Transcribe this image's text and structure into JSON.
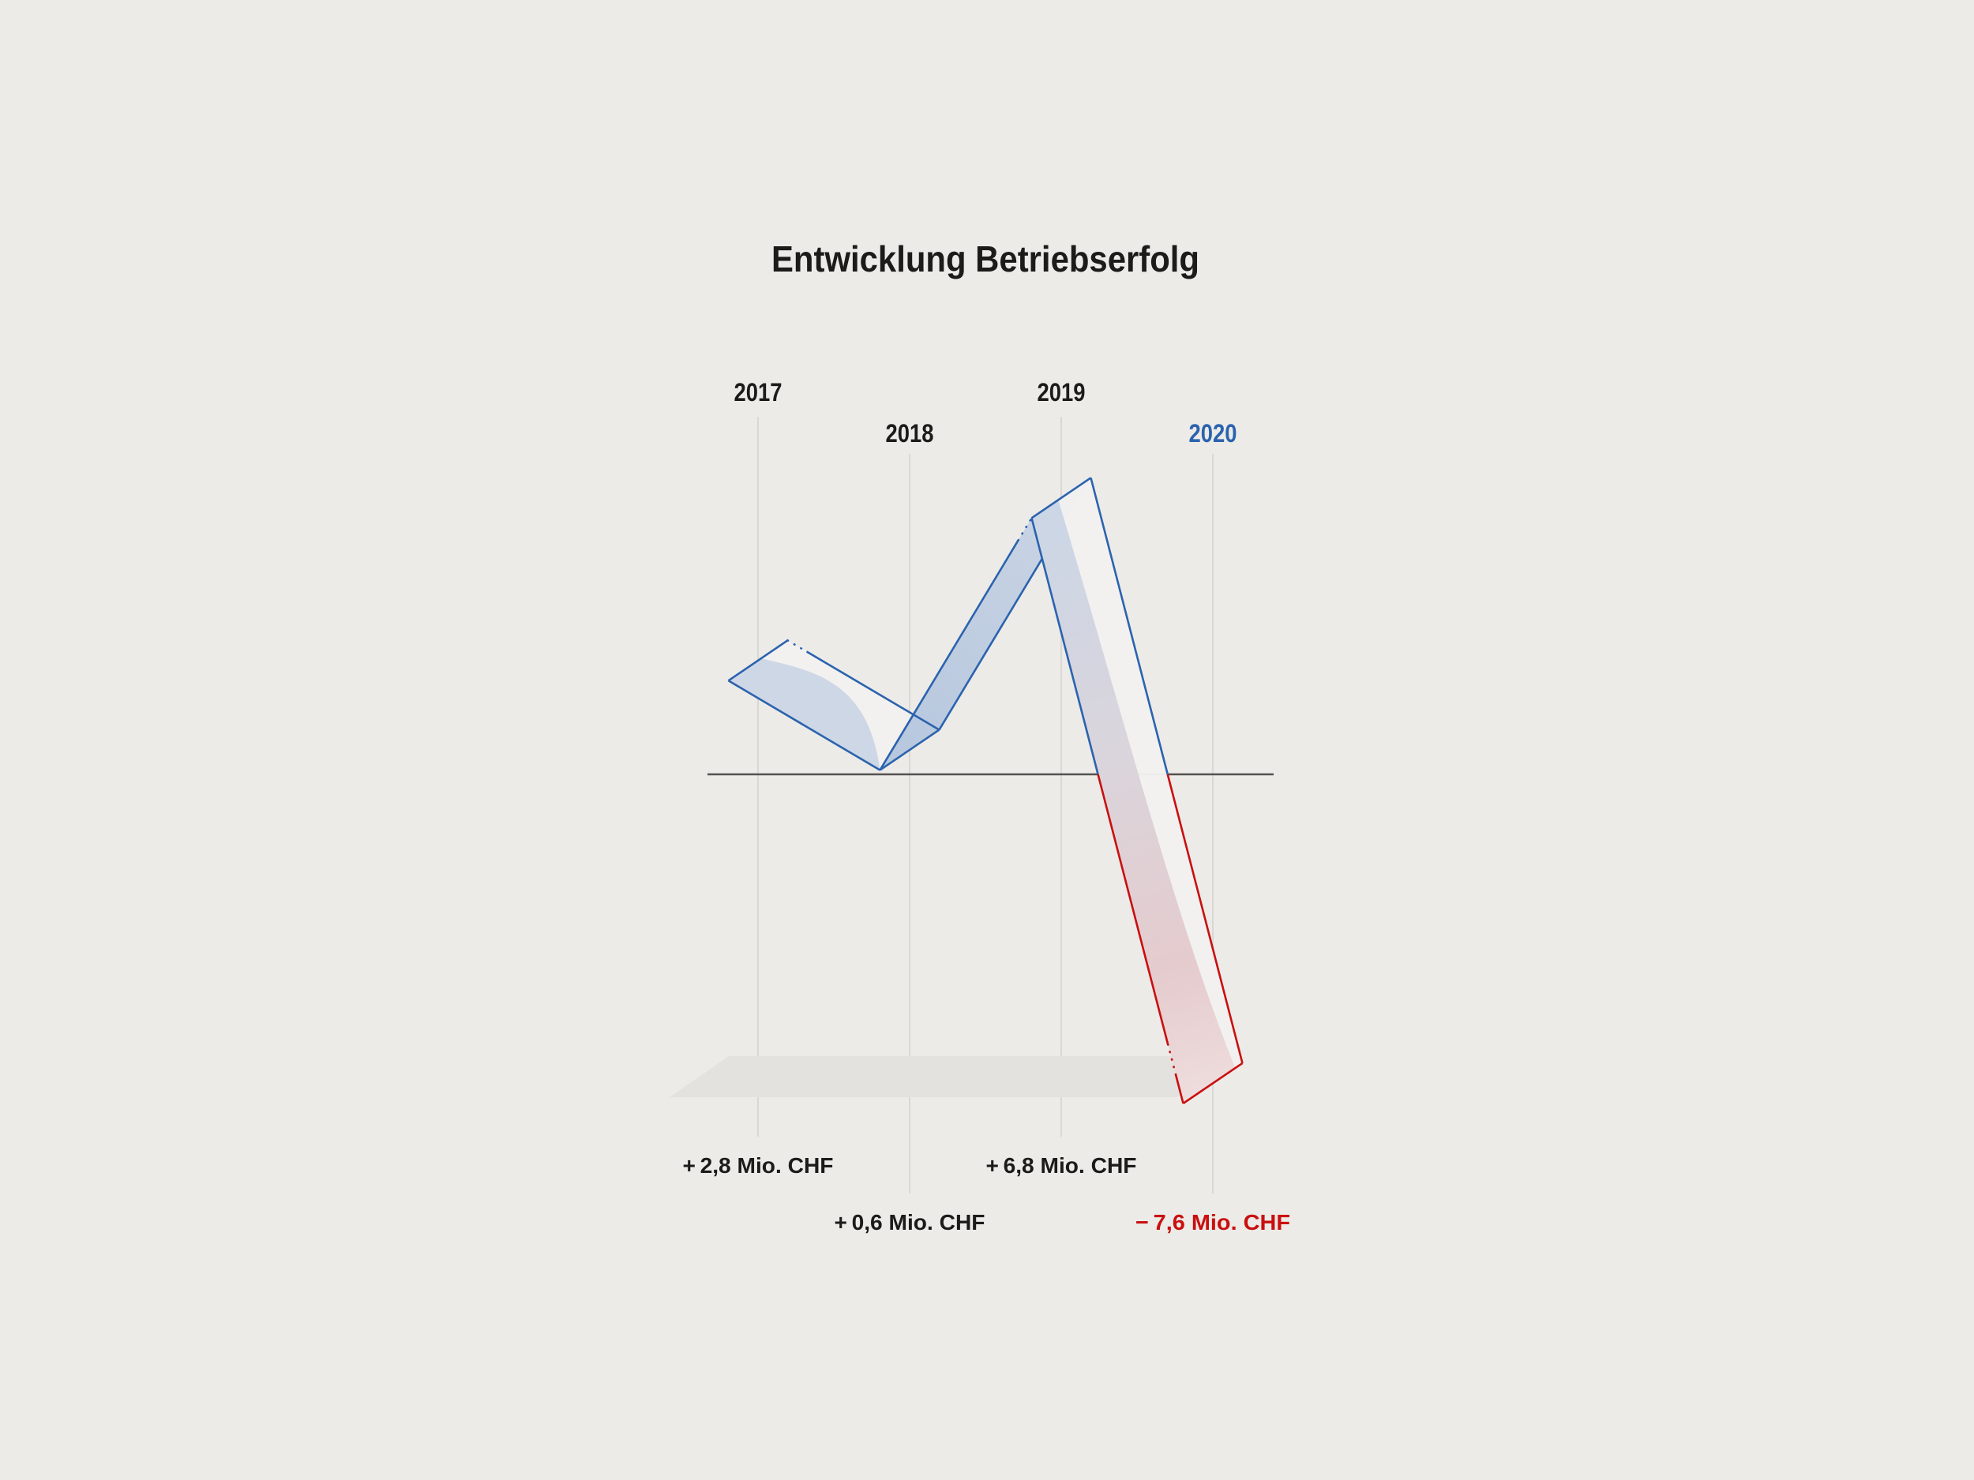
{
  "title": "Entwicklung Betriebserfolg",
  "chart_data": {
    "type": "line",
    "variant": "3d-ribbon",
    "title": "Entwicklung Betriebserfolg",
    "categories": [
      "2017",
      "2018",
      "2019",
      "2020"
    ],
    "values": [
      2.8,
      0.6,
      6.8,
      -7.6
    ],
    "unit": "Mio. CHF",
    "value_labels": [
      "+ 2,8 Mio. CHF",
      "+ 0,6 Mio. CHF",
      "+ 6,8 Mio. CHF",
      "− 7,6 Mio. CHF"
    ],
    "baseline_value": 0,
    "highlight_category": "2020",
    "grid": "vertical-per-category",
    "legend": "none",
    "annotations": [
      "zero axis line",
      "floor shadow under negative 2020 ribbon end"
    ]
  },
  "colors": {
    "background": "#ECEBE8",
    "text": "#1C1B1A",
    "positive_line": "#2B63AE",
    "negative_line": "#C90F0F",
    "year_highlight": "#2B63AE",
    "negative_label": "#C90F0F",
    "gridline": "#D9D8D5",
    "axis": "#53524E",
    "ribbon_face": "#F2F1EF",
    "ribbon_shade_light": "#CBD5E5",
    "ribbon_shade_mid": "#AFC2DC",
    "ribbon_shade_top": "#C6D2E4",
    "ribbon_shade_neg1": "#D7D1D9",
    "ribbon_shade_neg2": "#E3C6C9",
    "ribbon_shade_neg3": "#EEDADA",
    "shadow": "#E3E2DF"
  }
}
